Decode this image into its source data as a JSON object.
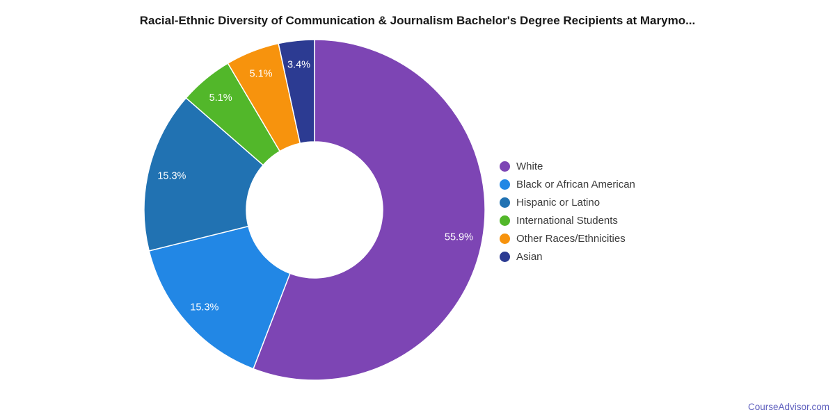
{
  "title": "Racial-Ethnic Diversity of Communication & Journalism Bachelor's Degree Recipients at Marymo...",
  "watermark": "CourseAdvisor.com",
  "chart_data": {
    "type": "pie",
    "donut": true,
    "hole_ratio": 0.4,
    "title": "Racial-Ethnic Diversity of Communication & Journalism Bachelor's Degree Recipients at Marymo...",
    "labels": [
      "White",
      "Black or African American",
      "Hispanic or Latino",
      "International Students",
      "Other Races/Ethnicities",
      "Asian"
    ],
    "values": [
      55.9,
      15.3,
      15.3,
      5.1,
      5.1,
      3.4
    ],
    "slice_labels": [
      "55.9%",
      "15.3%",
      "15.3%",
      "5.1%",
      "5.1%",
      "3.4%"
    ],
    "colors": [
      "#7d45b4",
      "#2287e5",
      "#2172b2",
      "#52b72a",
      "#f7930d",
      "#2c3b92"
    ],
    "legend_position": "right",
    "start_angle": 0,
    "direction": "clockwise"
  }
}
